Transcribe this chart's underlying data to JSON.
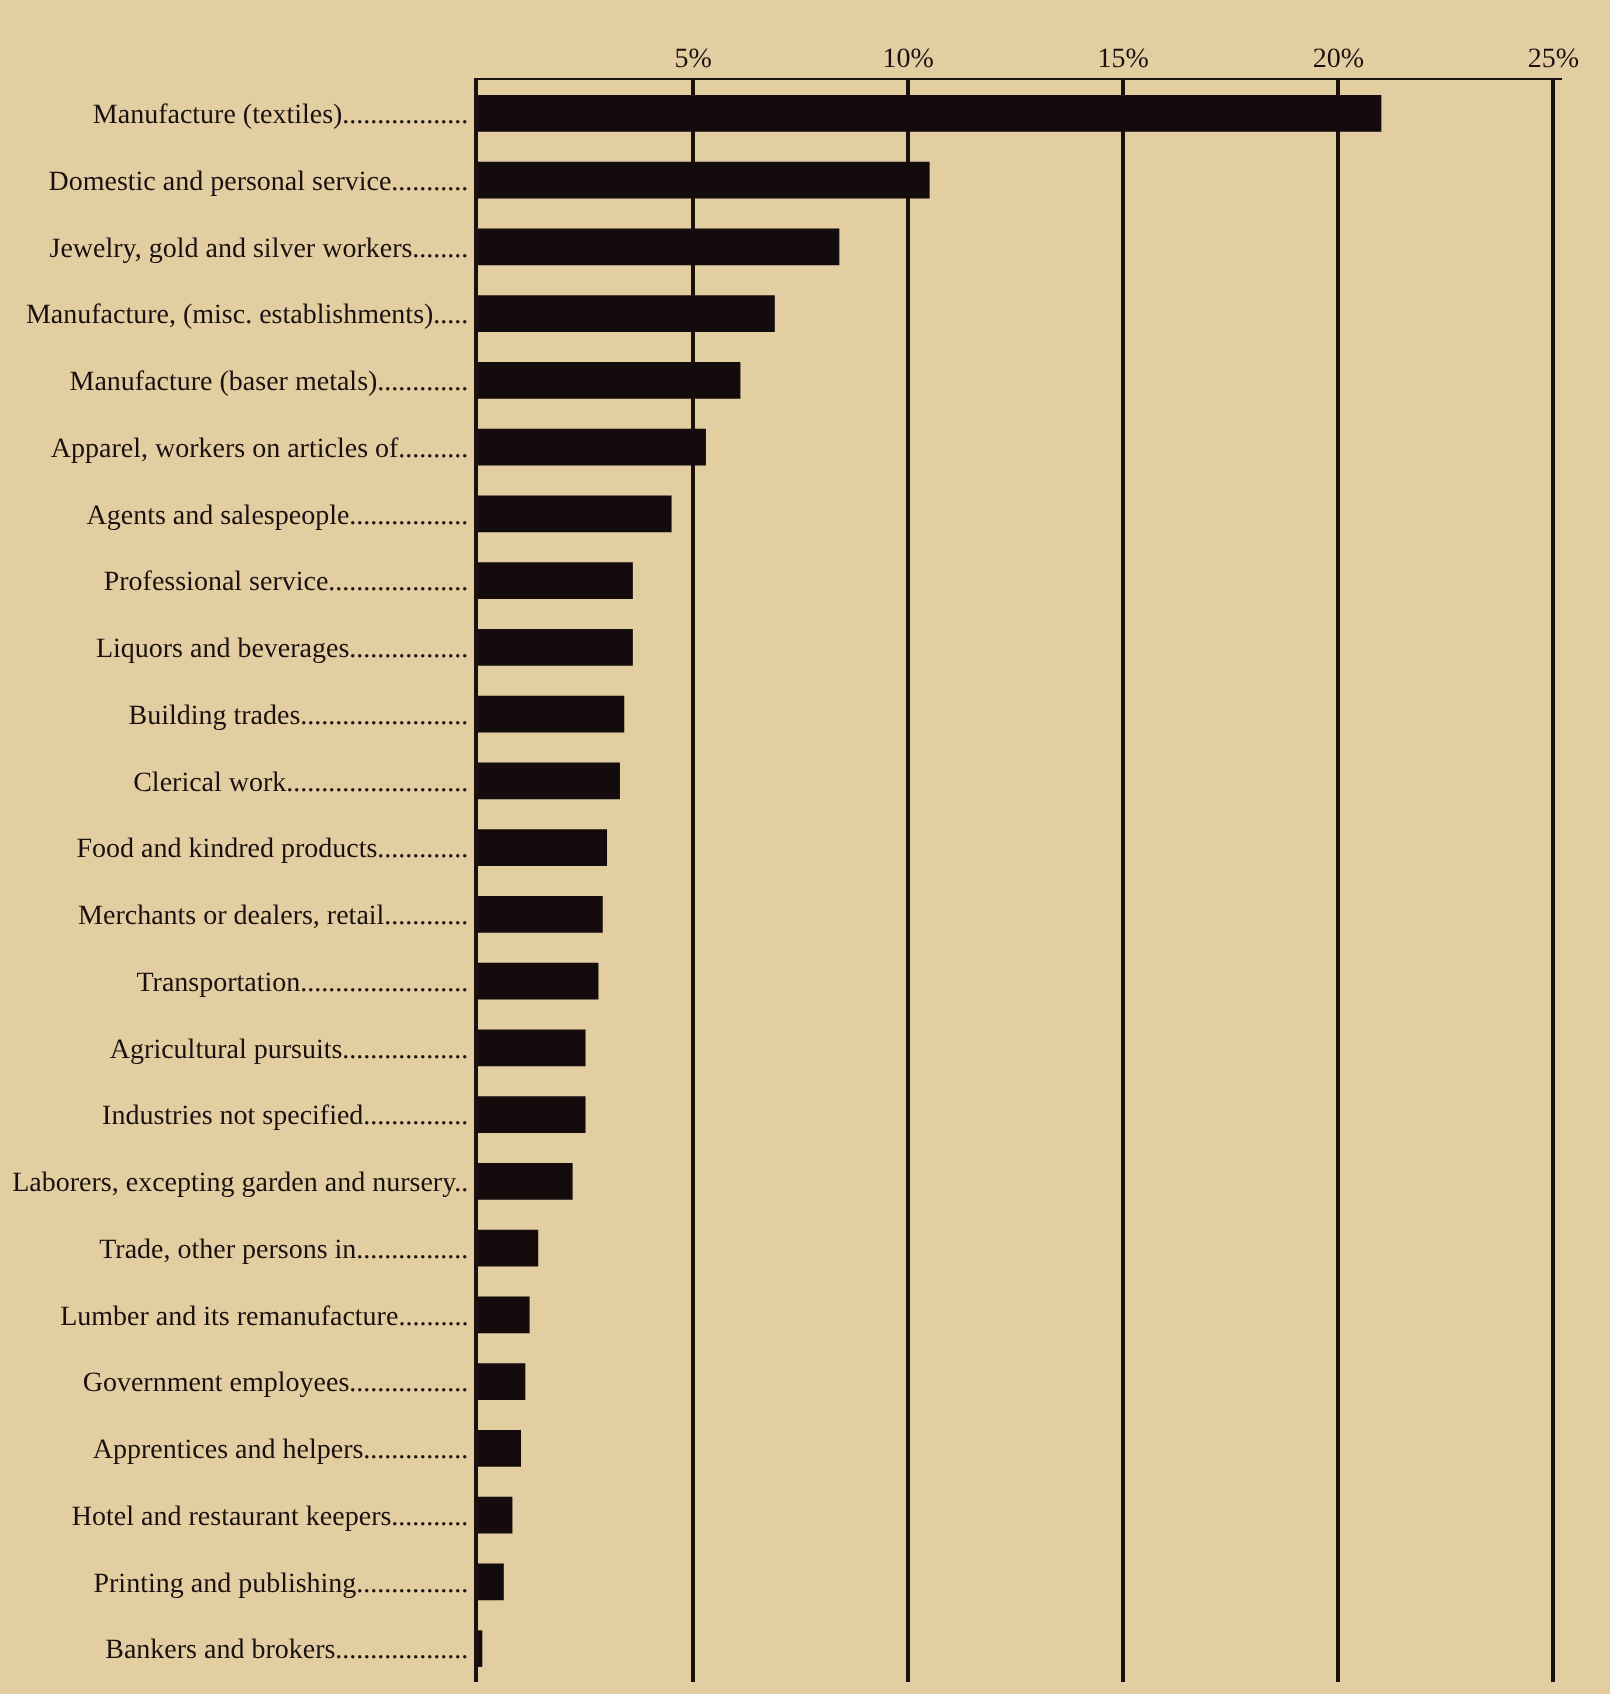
{
  "chart_data": {
    "type": "bar",
    "orientation": "horizontal",
    "categories": [
      "Manufacture (textiles)..................",
      "Domestic and personal service...........",
      "Jewelry, gold and silver workers........",
      "Manufacture, (misc. establishments).....",
      "Manufacture (baser metals).............",
      "Apparel, workers on articles of..........",
      "Agents and salespeople.................",
      "Professional service....................",
      "Liquors and beverages.................",
      "Building trades........................",
      "Clerical work..........................",
      "Food and kindred products.............",
      "Merchants or dealers, retail............",
      "Transportation........................",
      "Agricultural pursuits..................",
      "Industries not specified...............",
      "Laborers, excepting garden and nursery..",
      "Trade, other persons in................",
      "Lumber and its remanufacture..........",
      "Government employees.................",
      "Apprentices and helpers...............",
      "Hotel and restaurant keepers...........",
      "Printing and publishing................",
      "Bankers and brokers..................."
    ],
    "values": [
      21.0,
      10.5,
      8.4,
      6.9,
      6.1,
      5.3,
      4.5,
      3.6,
      3.6,
      3.4,
      3.3,
      3.0,
      2.9,
      2.8,
      2.5,
      2.5,
      2.2,
      1.4,
      1.2,
      1.1,
      1.0,
      0.8,
      0.6,
      0.1
    ],
    "color": "#140c0c",
    "xlim": [
      0,
      25.2
    ],
    "xticks": [
      {
        "value": 5,
        "label": "5%"
      },
      {
        "value": 10,
        "label": "10%"
      },
      {
        "value": 15,
        "label": "15%"
      },
      {
        "value": 20,
        "label": "20%"
      },
      {
        "value": 25,
        "label": "25%"
      }
    ],
    "grid": "x"
  }
}
